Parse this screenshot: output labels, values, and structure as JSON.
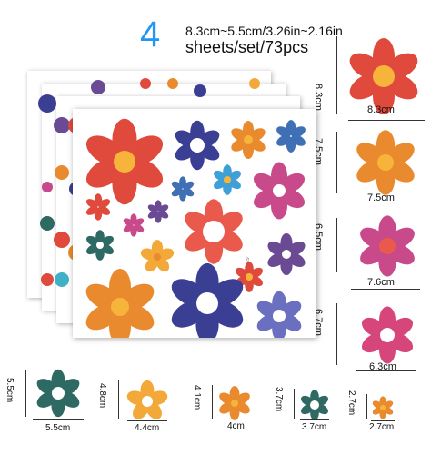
{
  "header": {
    "count": "4",
    "size_range": "8.3cm~5.5cm/3.26in~2.16in",
    "sheets_text": "sheets/set/73pcs"
  },
  "sheet_code": "2-P65629",
  "colors": {
    "accent_count": "#2196f3",
    "red": "#e04a3c",
    "orange": "#ea8a2e",
    "yellow": "#f3a93a",
    "navy": "#3b3f94",
    "blue": "#3f6fb5",
    "teal": "#2e6a63",
    "magenta": "#c94a8a",
    "pink": "#d6467a",
    "purple": "#6b4a94",
    "center_yellow": "#f6b43a",
    "center_white": "#ffffff"
  },
  "samples": [
    {
      "w": "8.3cm",
      "h": "8.3cm",
      "color": "red"
    },
    {
      "w": "7.5cm",
      "h": "7.5cm",
      "color": "orange"
    },
    {
      "w": "7.6cm",
      "h": "6.5cm",
      "color": "magenta"
    },
    {
      "w": "6.3cm",
      "h": "6.7cm",
      "color": "pink"
    },
    {
      "w": "5.5cm",
      "h": "5.5cm",
      "color": "teal"
    },
    {
      "w": "4.4cm",
      "h": "4.8cm",
      "color": "yellow"
    },
    {
      "w": "4cm",
      "h": "4.1cm",
      "color": "orange"
    },
    {
      "w": "3.7cm",
      "h": "3.7cm",
      "color": "teal"
    },
    {
      "w": "2.7cm",
      "h": "2.7cm",
      "color": "orange"
    }
  ]
}
